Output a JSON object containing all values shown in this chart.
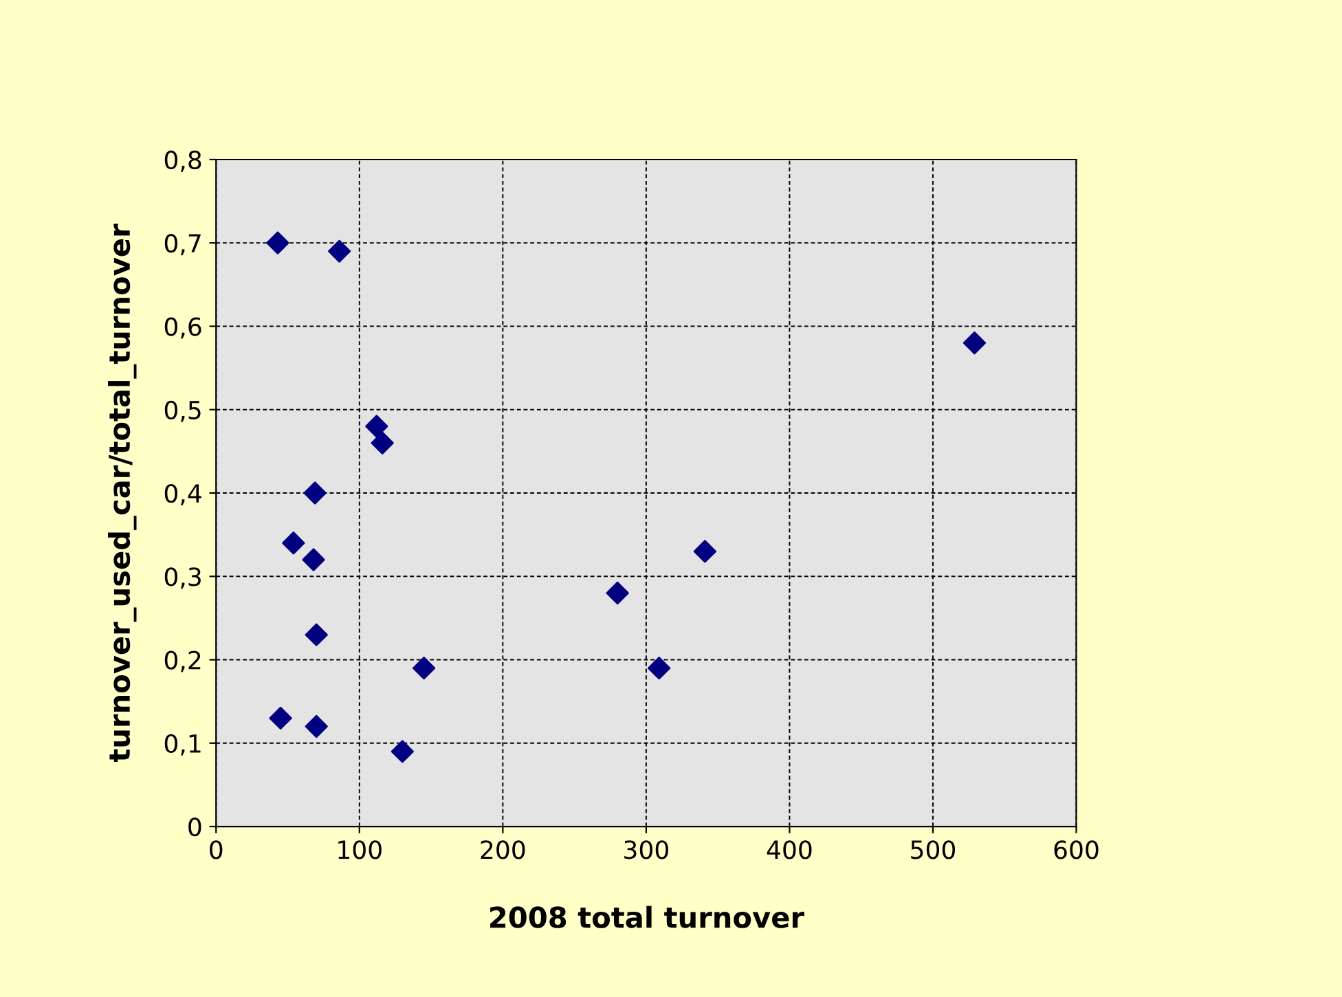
{
  "chart_data": {
    "type": "scatter",
    "xlabel": "2008 total turnover",
    "ylabel": "turnover_used_car/total_turnover",
    "x": [
      43,
      86,
      529,
      112,
      116,
      69,
      54,
      68,
      341,
      280,
      70,
      145,
      309,
      45,
      70,
      130
    ],
    "series": [
      {
        "color": "#000080",
        "values": [
          0.7,
          0.69,
          0.58,
          0.48,
          0.46,
          0.4,
          0.34,
          0.32,
          0.33,
          0.28,
          0.23,
          0.19,
          0.19,
          0.13,
          0.12,
          0.09
        ]
      }
    ],
    "marker": "diamond",
    "grid": true,
    "xlim": [
      0,
      600
    ],
    "xticks": [
      0,
      100,
      200,
      300,
      400,
      500,
      600
    ],
    "ylim": [
      0,
      0.8
    ],
    "yticks": [
      0,
      {
        "value": 0.1,
        "label": "0,1"
      },
      {
        "value": 0.2,
        "label": "0,2"
      },
      {
        "value": 0.3,
        "label": "0,3"
      },
      {
        "value": 0.4,
        "label": "0,4"
      },
      {
        "value": 0.5,
        "label": "0,5"
      },
      {
        "value": 0.6,
        "label": "0,6"
      },
      {
        "value": 0.7,
        "label": "0,7"
      },
      {
        "value": 0.8,
        "label": "0,8"
      }
    ]
  }
}
